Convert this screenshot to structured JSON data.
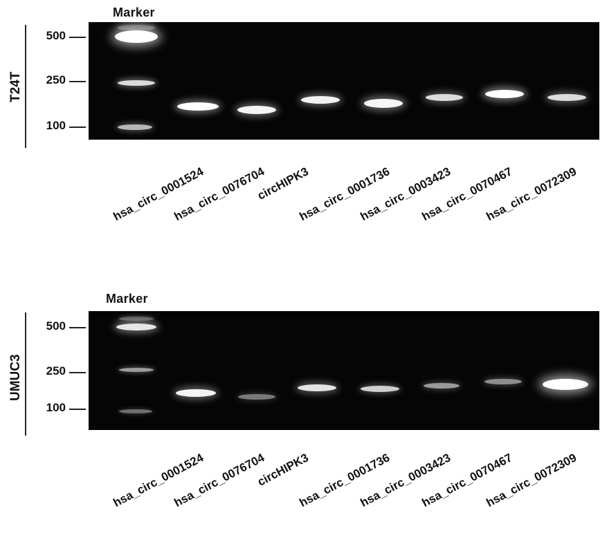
{
  "panels": [
    {
      "id": "top",
      "side_label": "T24T",
      "marker_label": "Marker",
      "size_markers": [
        "500",
        "250",
        "100"
      ],
      "lanes": [
        "hsa_circ_0001524",
        "hsa_circ_0076704",
        "circHIPK3",
        "hsa_circ_0001736",
        "hsa_circ_0003423",
        "hsa_circ_0070467",
        "hsa_circ_0072309"
      ]
    },
    {
      "id": "bottom",
      "side_label": "UMUC3",
      "marker_label": "Marker",
      "size_markers": [
        "500",
        "250",
        "100"
      ],
      "lanes": [
        "hsa_circ_0001524",
        "hsa_circ_0076704",
        "circHIPK3",
        "hsa_circ_0001736",
        "hsa_circ_0003423",
        "hsa_circ_0070467",
        "hsa_circ_0072309"
      ]
    }
  ]
}
